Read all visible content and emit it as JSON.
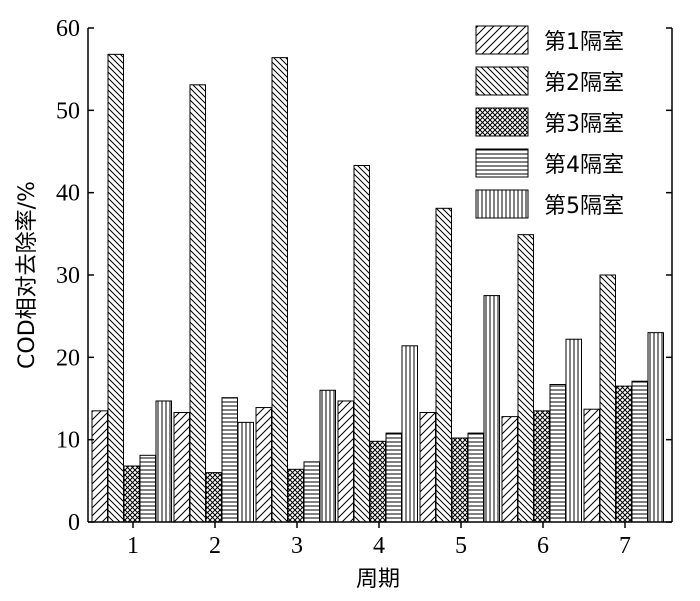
{
  "chart_data": {
    "type": "bar",
    "categories": [
      "1",
      "2",
      "3",
      "4",
      "5",
      "6",
      "7"
    ],
    "series": [
      {
        "name": "第1隔室",
        "values": [
          13.5,
          13.3,
          13.9,
          14.7,
          13.3,
          12.8,
          13.7
        ],
        "pattern": "diag-fwd"
      },
      {
        "name": "第2隔室",
        "values": [
          56.8,
          53.1,
          56.4,
          43.3,
          38.1,
          34.9,
          30.0
        ],
        "pattern": "diag-back"
      },
      {
        "name": "第3隔室",
        "values": [
          6.8,
          6.0,
          6.4,
          9.8,
          10.2,
          13.5,
          16.5
        ],
        "pattern": "crosshatch"
      },
      {
        "name": "第4隔室",
        "values": [
          8.1,
          15.1,
          7.3,
          10.8,
          10.8,
          16.7,
          17.1
        ],
        "pattern": "horizontal"
      },
      {
        "name": "第5隔室",
        "values": [
          14.7,
          12.1,
          16.0,
          21.4,
          27.5,
          22.2,
          23.0
        ],
        "pattern": "vertical"
      }
    ],
    "xlabel": "周期",
    "ylabel": "COD相对去除率/%",
    "ylim": [
      0,
      60
    ],
    "yticks": [
      0,
      10,
      20,
      30,
      40,
      50,
      60
    ],
    "grid": false,
    "legend_position": "top-right"
  }
}
